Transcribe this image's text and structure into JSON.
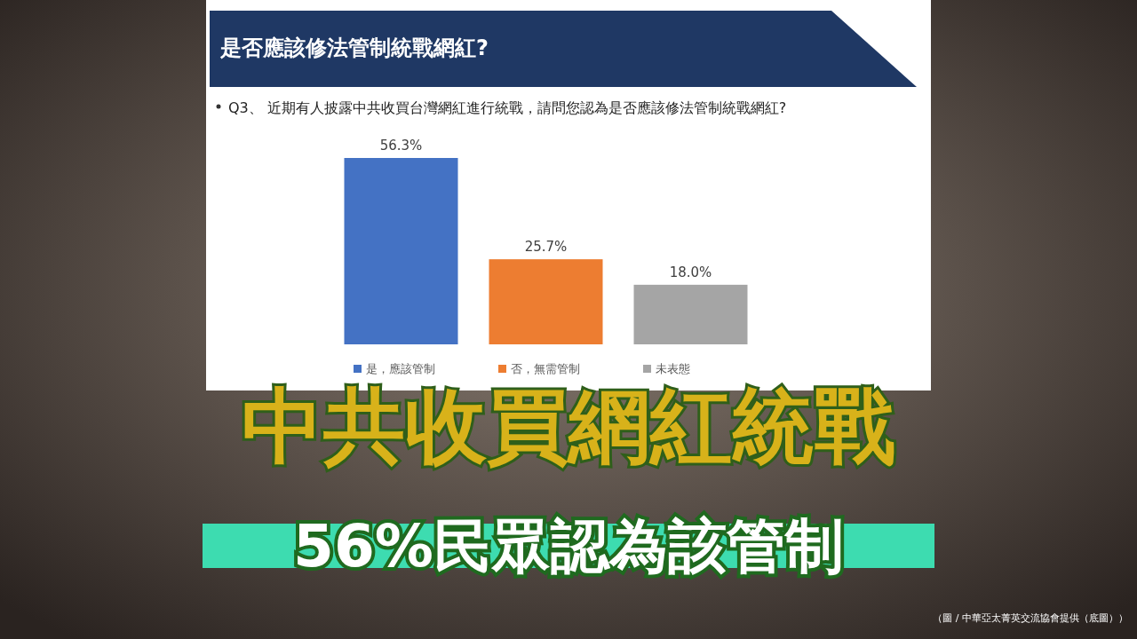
{
  "chart_data": {
    "type": "bar",
    "title": "是否應該修法管制統戰網紅?",
    "subtitle": "Q3、 近期有人披露中共收買台灣網紅進行統戰，請問您認為是否應該修法管制統戰網紅?",
    "categories": [
      null
    ],
    "series": [
      {
        "name": "是，應該管制",
        "color": "#4472c4",
        "values": [
          56.3
        ],
        "value_labels": [
          "56.3%"
        ]
      },
      {
        "name": "否，無需管制",
        "color": "#ed7d31",
        "values": [
          25.7
        ],
        "value_labels": [
          "25.7%"
        ]
      },
      {
        "name": "未表態",
        "color": "#a5a5a5",
        "values": [
          18.0
        ],
        "value_labels": [
          "18.0%"
        ]
      }
    ],
    "legend": "bottom",
    "annotations": [
      "中共收買網紅統戰",
      "56%民眾認為該管制",
      "（圖 / 中華亞太菁英交流協會提供（底圖））"
    ]
  }
}
